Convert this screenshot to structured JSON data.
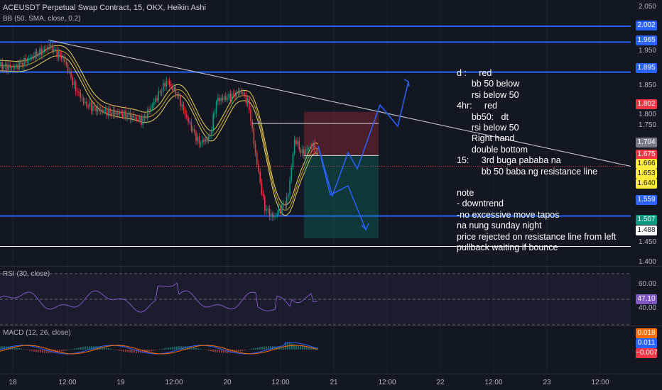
{
  "header": {
    "title": "ACEUSDT Perpetual Swap Contract, 15, OKX, Heikin Ashi",
    "bb_label": "BB (50, SMA, close, 0.2)",
    "rsi_label": "RSI (30, close)",
    "macd_label": "MACD (12, 26, close)"
  },
  "price_axis": {
    "ticks": [
      "2.050",
      "1.950",
      "1.850",
      "1.800",
      "1.750",
      "1.450",
      "1.400"
    ],
    "tags": [
      {
        "text": "2.002",
        "bg": "#2962ff",
        "fg": "#ffffff"
      },
      {
        "text": "1.965",
        "bg": "#2962ff",
        "fg": "#ffffff"
      },
      {
        "text": "1.895",
        "bg": "#2962ff",
        "fg": "#ffffff"
      },
      {
        "text": "1.802",
        "bg": "#f23645",
        "fg": "#ffffff"
      },
      {
        "text": "1.704",
        "bg": "#787b86",
        "fg": "#ffffff"
      },
      {
        "text": "1.675",
        "bg": "#f23645",
        "fg": "#ffffff"
      },
      {
        "text": "1.666",
        "bg": "#ffeb3b",
        "fg": "#131722"
      },
      {
        "text": "1.653",
        "bg": "#ffeb3b",
        "fg": "#131722"
      },
      {
        "text": "1.640",
        "bg": "#ffeb3b",
        "fg": "#131722"
      },
      {
        "text": "1.559",
        "bg": "#2962ff",
        "fg": "#ffffff"
      },
      {
        "text": "1.507",
        "bg": "#089981",
        "fg": "#ffffff"
      },
      {
        "text": "1.488",
        "bg": "#ffffff",
        "fg": "#131722"
      }
    ]
  },
  "rsi_axis": {
    "ticks": [
      "60.00",
      "40.00"
    ],
    "tag": {
      "text": "47.10",
      "bg": "#7e57c2",
      "fg": "#ffffff"
    }
  },
  "macd_axis": {
    "tags": [
      {
        "text": "0.018",
        "bg": "#ff6d00",
        "fg": "#ffffff"
      },
      {
        "text": "0.011",
        "bg": "#2962ff",
        "fg": "#ffffff"
      },
      {
        "text": "−0.007",
        "bg": "#f23645",
        "fg": "#ffffff"
      }
    ]
  },
  "time_axis": {
    "labels": [
      "18",
      "12:00",
      "19",
      "12:00",
      "20",
      "12:00",
      "21",
      "12:00",
      "22",
      "12:00",
      "23",
      "12:00"
    ]
  },
  "notes": {
    "lines": [
      "d :     red",
      "      bb 50 below",
      "      rsi below 50",
      "4hr:     red",
      "      bb50:   dt",
      "      rsi below 50",
      "      Right hand",
      "      double bottom",
      "15:     3rd buga pababa na",
      "          bb 50 baba ng resistance line",
      "",
      "note",
      "- downtrend",
      "-no excessive move tapos",
      "na nung sunday night",
      "price rejected on resistance line from left",
      "pullback waiting if bounce"
    ]
  },
  "colors": {
    "background": "#131722",
    "candle_up": "#089981",
    "candle_down": "#f23645",
    "support_line": "#2962ff",
    "bb_band": "#d4b63a",
    "rsi_line": "#7e57c2",
    "macd_line": "#2962ff",
    "signal_line": "#ff6d00"
  }
}
